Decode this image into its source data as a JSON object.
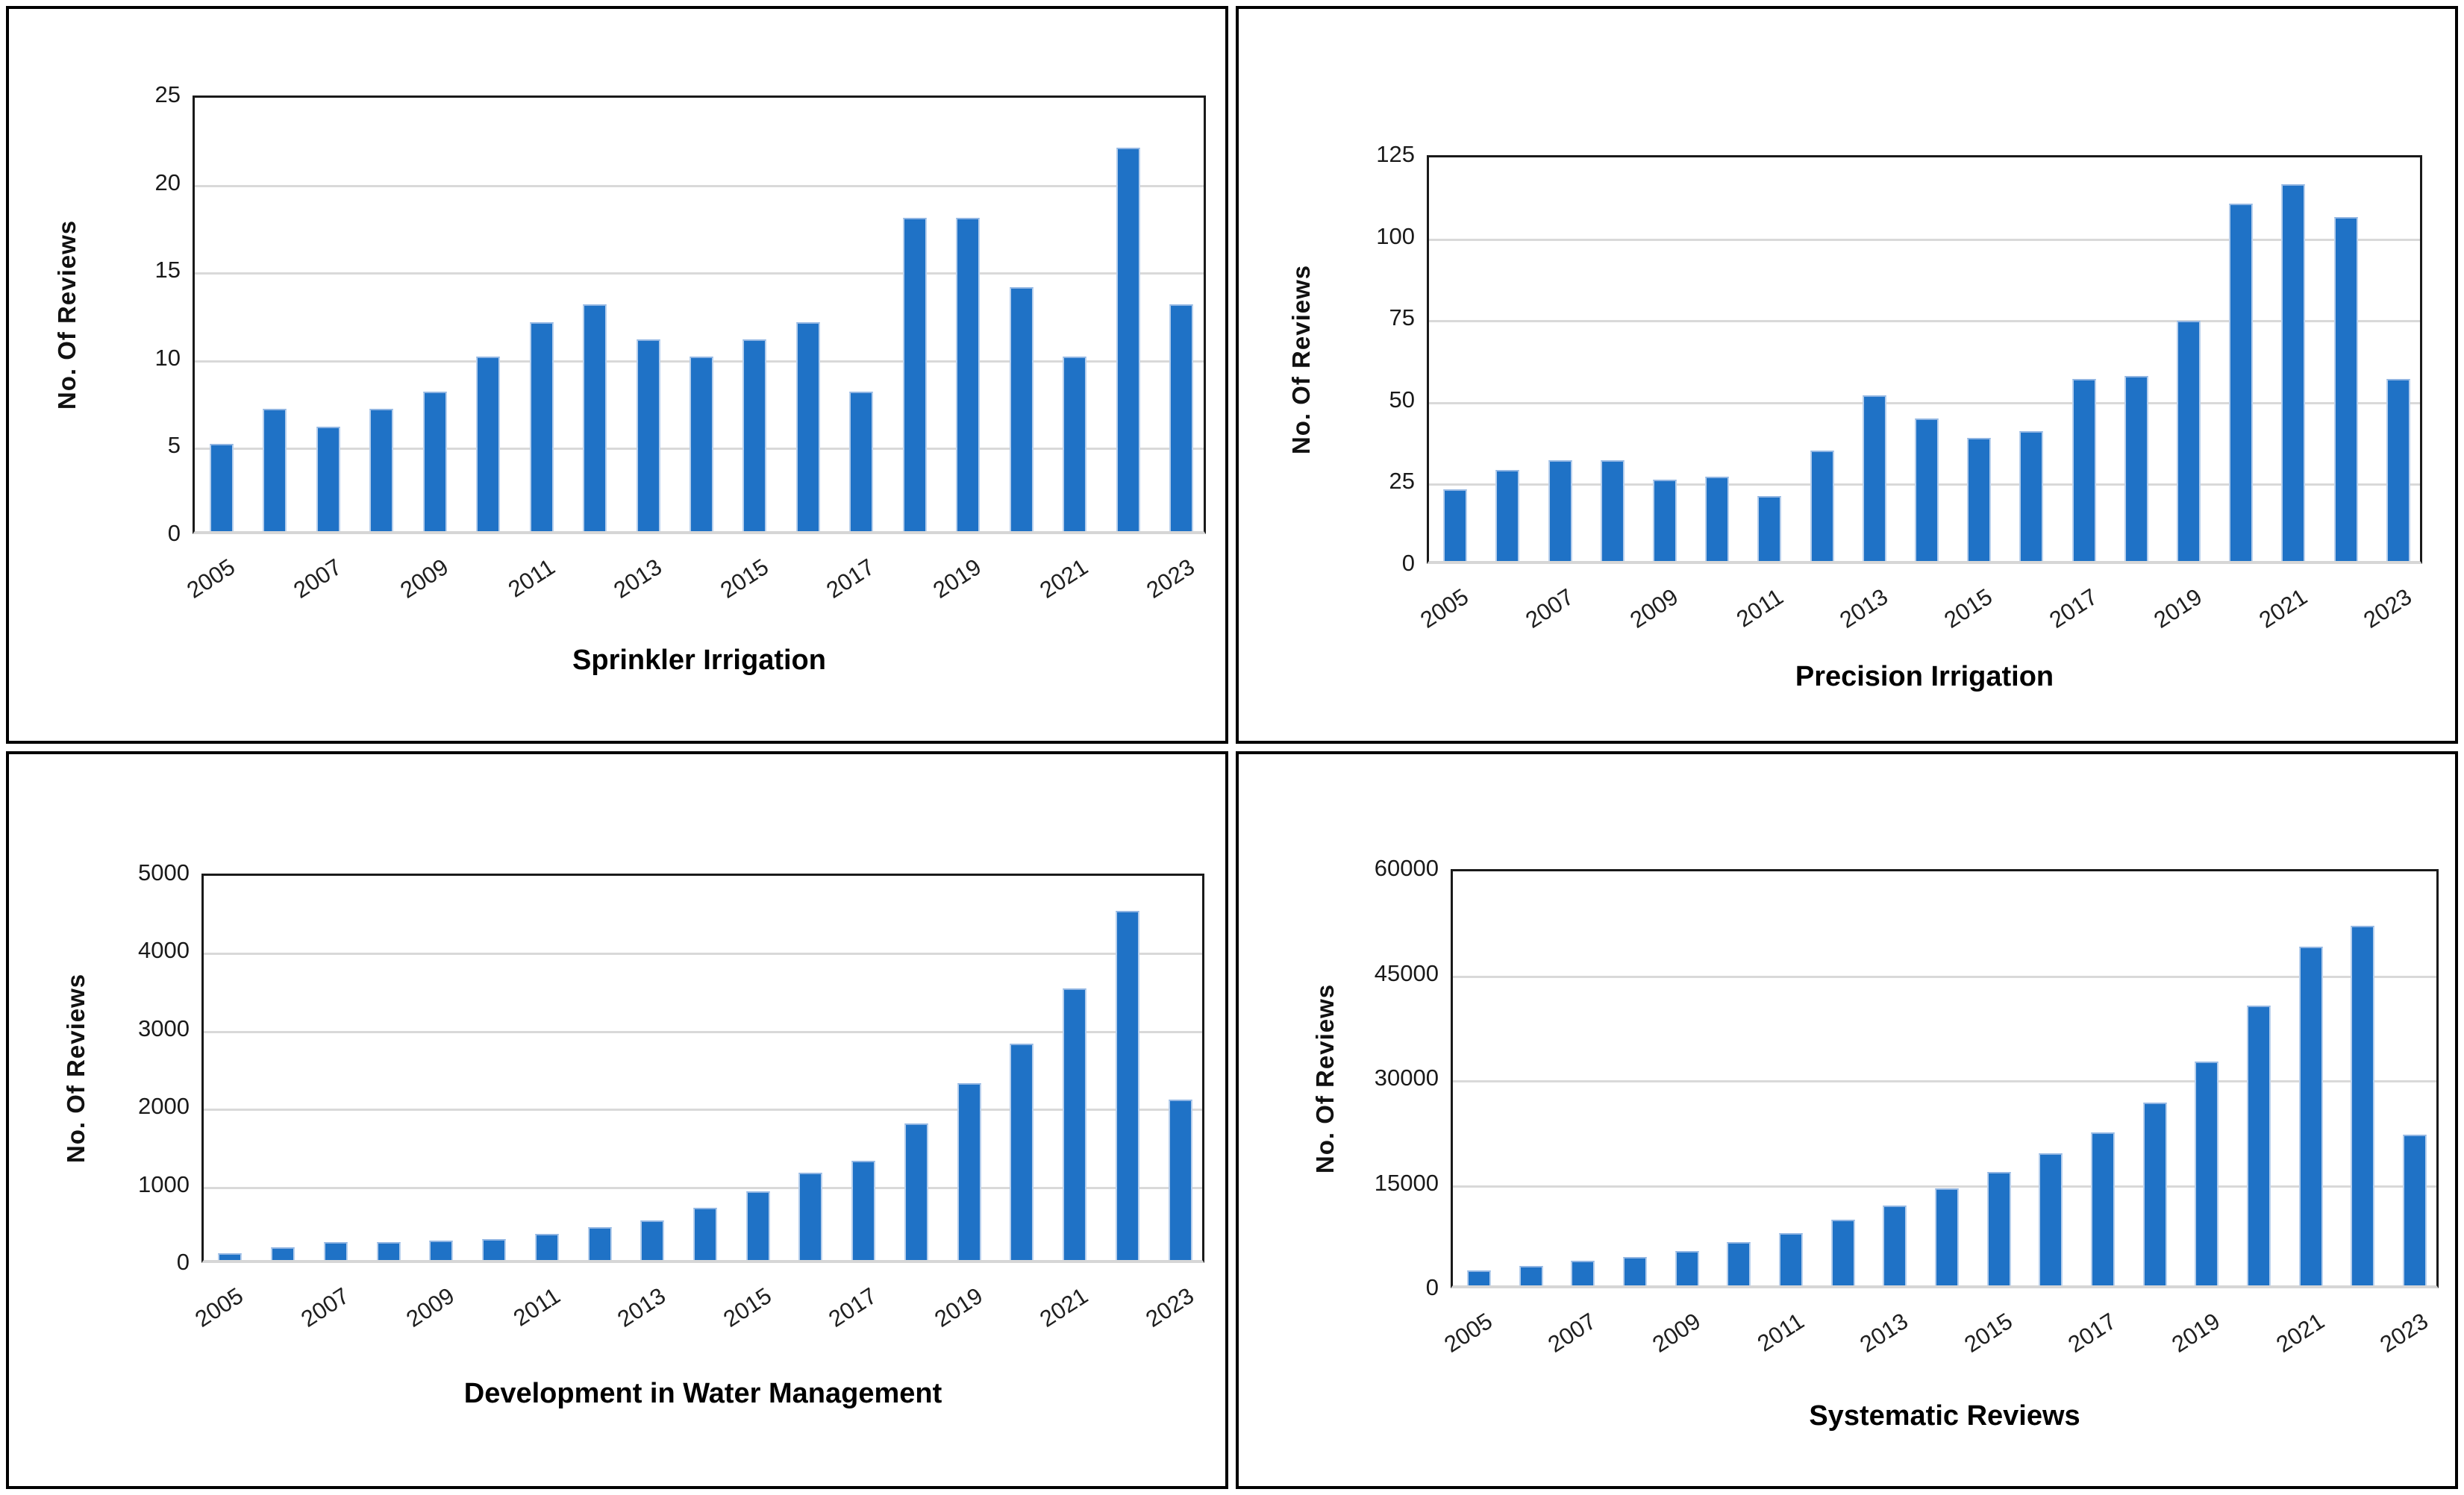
{
  "chart_data": [
    {
      "type": "bar",
      "title": "Sprinkler Irrigation",
      "ylabel": "No. Of Reviews",
      "categories": [
        "2005",
        "2006",
        "2007",
        "2008",
        "2009",
        "2010",
        "2011",
        "2012",
        "2013",
        "2014",
        "2015",
        "2016",
        "2017",
        "2018",
        "2019",
        "2020",
        "2021",
        "2022",
        "2023"
      ],
      "values": [
        5,
        7,
        6,
        7,
        8,
        10,
        12,
        13,
        11,
        10,
        11,
        12,
        8,
        18,
        18,
        14,
        10,
        22,
        13
      ],
      "xlabel": "",
      "ylim": [
        0,
        25
      ],
      "ytick_step": 5,
      "x_tick_every": 2,
      "grid": true,
      "legend": "none"
    },
    {
      "type": "bar",
      "title": "Precision Irrigation",
      "ylabel": "No. Of Reviews",
      "categories": [
        "2005",
        "2006",
        "2007",
        "2008",
        "2009",
        "2010",
        "2011",
        "2012",
        "2013",
        "2014",
        "2015",
        "2016",
        "2017",
        "2018",
        "2019",
        "2020",
        "2021",
        "2022",
        "2023"
      ],
      "values": [
        22,
        28,
        31,
        31,
        25,
        26,
        20,
        34,
        51,
        44,
        38,
        40,
        56,
        57,
        74,
        110,
        116,
        106,
        56
      ],
      "xlabel": "",
      "ylim": [
        0,
        125
      ],
      "ytick_step": 25,
      "x_tick_every": 2,
      "grid": true,
      "legend": "none"
    },
    {
      "type": "bar",
      "title": "Development in Water Management",
      "ylabel": "No. Of Reviews",
      "categories": [
        "2005",
        "2006",
        "2007",
        "2008",
        "2009",
        "2010",
        "2011",
        "2012",
        "2013",
        "2014",
        "2015",
        "2016",
        "2017",
        "2018",
        "2019",
        "2020",
        "2021",
        "2022",
        "2023"
      ],
      "values": [
        90,
        160,
        230,
        230,
        250,
        270,
        340,
        420,
        510,
        680,
        890,
        1130,
        1280,
        1770,
        2290,
        2800,
        3510,
        4520,
        2080
      ],
      "xlabel": "",
      "ylim": [
        0,
        5000
      ],
      "ytick_step": 1000,
      "x_tick_every": 2,
      "grid": true,
      "legend": "none"
    },
    {
      "type": "bar",
      "title": "Systematic Reviews",
      "ylabel": "No. Of Reviews",
      "categories": [
        "2005",
        "2006",
        "2007",
        "2008",
        "2009",
        "2010",
        "2011",
        "2012",
        "2013",
        "2014",
        "2015",
        "2016",
        "2017",
        "2018",
        "2019",
        "2020",
        "2021",
        "2022",
        "2023"
      ],
      "values": [
        2200,
        2800,
        3600,
        4100,
        4900,
        6200,
        7500,
        9500,
        11500,
        14000,
        16300,
        19000,
        22000,
        26300,
        32300,
        40300,
        48800,
        51800,
        21700
      ],
      "xlabel": "",
      "ylim": [
        0,
        60000
      ],
      "ytick_step": 15000,
      "x_tick_every": 2,
      "grid": true,
      "legend": "none"
    }
  ],
  "colors": {
    "bar": "#1F72C6",
    "bar_edge_side": "#b7cfec",
    "bar_edge_top": "#8fb4e2",
    "gridline": "#d9d9d9",
    "frame": "#1a1a1a",
    "baseline": "#d6d6d6",
    "text": "#1a1a1a",
    "panel_border": "#000000",
    "background": "#ffffff"
  }
}
